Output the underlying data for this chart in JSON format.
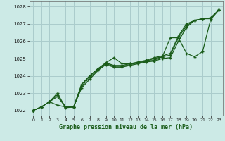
{
  "title": "Graphe pression niveau de la mer (hPa)",
  "bg_color": "#cceae6",
  "grid_color": "#aacccc",
  "line_color": "#1a5c1a",
  "xlim": [
    -0.5,
    23.5
  ],
  "ylim": [
    1021.7,
    1028.3
  ],
  "yticks": [
    1022,
    1023,
    1024,
    1025,
    1026,
    1027,
    1028
  ],
  "xticks": [
    0,
    1,
    2,
    3,
    4,
    5,
    6,
    7,
    8,
    9,
    10,
    11,
    12,
    13,
    14,
    15,
    16,
    17,
    18,
    19,
    20,
    21,
    22,
    23
  ],
  "series": [
    [
      1022.0,
      1022.2,
      1022.5,
      1022.3,
      1022.2,
      1022.2,
      1023.3,
      1023.8,
      1024.3,
      1024.65,
      1024.5,
      1024.5,
      1024.6,
      1024.7,
      1024.8,
      1024.85,
      1025.0,
      1025.05,
      1026.0,
      1026.8,
      1027.2,
      1027.3,
      1027.3,
      1027.8
    ],
    [
      1022.0,
      1022.2,
      1022.5,
      1022.8,
      1022.2,
      1022.2,
      1023.4,
      1023.9,
      1024.35,
      1024.7,
      1024.55,
      1024.55,
      1024.65,
      1024.75,
      1024.85,
      1025.0,
      1025.1,
      1025.2,
      1026.2,
      1026.9,
      1027.2,
      1027.3,
      1027.35,
      1027.8
    ],
    [
      1022.0,
      1022.2,
      1022.5,
      1022.9,
      1022.2,
      1022.2,
      1023.5,
      1024.0,
      1024.4,
      1024.75,
      1024.6,
      1024.6,
      1024.7,
      1024.8,
      1024.9,
      1025.05,
      1025.15,
      1025.3,
      1026.3,
      1027.0,
      1027.2,
      1027.3,
      1027.35,
      1027.8
    ],
    [
      1022.0,
      1022.2,
      1022.5,
      1023.0,
      1022.15,
      1022.2,
      1023.5,
      1024.0,
      1024.4,
      1024.75,
      1025.05,
      1024.7,
      1024.7,
      1024.75,
      1024.85,
      1024.9,
      1025.1,
      1026.2,
      1026.2,
      1025.3,
      1025.1,
      1025.4,
      1027.25,
      1027.8
    ]
  ]
}
